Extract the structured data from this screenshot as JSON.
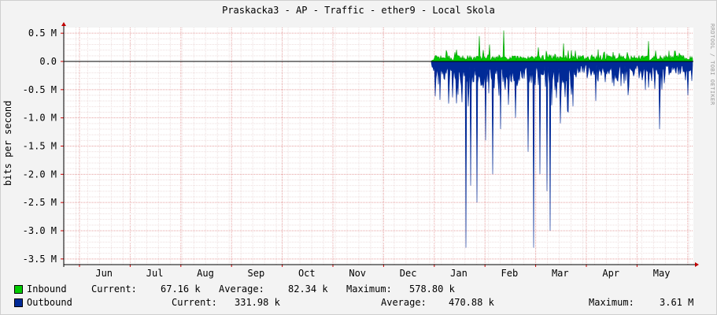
{
  "chart_data": {
    "type": "area",
    "title": "Praskacka3 - AP - Traffic - ether9 - Local Skola",
    "ylabel": "bits per second",
    "ylim": [
      -3.6,
      0.6
    ],
    "y_unit": "M",
    "y_ticks": [
      {
        "value": 0.5,
        "label": "0.5 M"
      },
      {
        "value": 0.0,
        "label": "0.0"
      },
      {
        "value": -0.5,
        "label": "-0.5 M"
      },
      {
        "value": -1.0,
        "label": "-1.0 M"
      },
      {
        "value": -1.5,
        "label": "-1.5 M"
      },
      {
        "value": -2.0,
        "label": "-2.0 M"
      },
      {
        "value": -2.5,
        "label": "-2.5 M"
      },
      {
        "value": -3.0,
        "label": "-3.0 M"
      },
      {
        "value": -3.5,
        "label": "-3.5 M"
      }
    ],
    "x_ticks": [
      "Jun",
      "Jul",
      "Aug",
      "Sep",
      "Oct",
      "Nov",
      "Dec",
      "Jan",
      "Feb",
      "Mar",
      "Apr",
      "May"
    ],
    "grid": true,
    "series": [
      {
        "name": "Inbound",
        "color": "#00cc00",
        "direction": "positive",
        "current": "67.16 k",
        "average": "82.34 k",
        "maximum": "578.80 k"
      },
      {
        "name": "Outbound",
        "color": "#002a97",
        "direction": "negative",
        "current": "331.98 k",
        "average": "470.88 k",
        "maximum": "3.61 M"
      }
    ]
  },
  "legend": {
    "current_label": "Current:",
    "average_label": "Average:",
    "maximum_label": "Maximum:"
  },
  "watermark": "RRDTOOL / TOBI OETIKER"
}
